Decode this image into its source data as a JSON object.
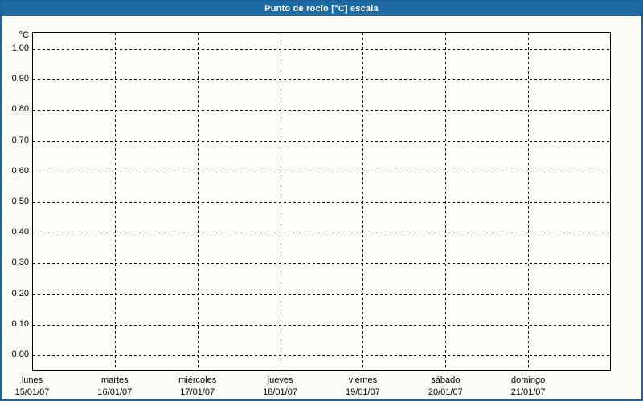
{
  "title": "Punto de rocío [°C] escala",
  "colors": {
    "title_bar": "#1e6aa2",
    "window_border": "#1d649c",
    "grid": "#000000",
    "background": "#fbfcf6",
    "plot_background": "#fefefa",
    "title_text": "#ffffff",
    "axis_text": "#000000"
  },
  "chart_data": {
    "type": "line",
    "title": "Punto de rocío [°C] escala",
    "series": [],
    "grid": true,
    "grid_style": "dashed",
    "legend_position": "none",
    "y_axis": {
      "unit": "°C",
      "min": 0.0,
      "max": 1.0,
      "step": 0.1,
      "ticks": [
        {
          "label": "1,00",
          "value": 1.0
        },
        {
          "label": "0,90",
          "value": 0.9
        },
        {
          "label": "0,80",
          "value": 0.8
        },
        {
          "label": "0,70",
          "value": 0.7
        },
        {
          "label": "0,60",
          "value": 0.6
        },
        {
          "label": "0,50",
          "value": 0.5
        },
        {
          "label": "0,40",
          "value": 0.4
        },
        {
          "label": "0,30",
          "value": 0.3
        },
        {
          "label": "0,20",
          "value": 0.2
        },
        {
          "label": "0,10",
          "value": 0.1
        },
        {
          "label": "0,00",
          "value": 0.0
        }
      ]
    },
    "x_axis": {
      "days": [
        {
          "name": "lunes",
          "date": "15/01/07"
        },
        {
          "name": "martes",
          "date": "16/01/07"
        },
        {
          "name": "miércoles",
          "date": "17/01/07"
        },
        {
          "name": "jueves",
          "date": "18/01/07"
        },
        {
          "name": "viernes",
          "date": "19/01/07"
        },
        {
          "name": "sábado",
          "date": "20/01/07"
        },
        {
          "name": "domingo",
          "date": "21/01/07"
        }
      ]
    }
  }
}
